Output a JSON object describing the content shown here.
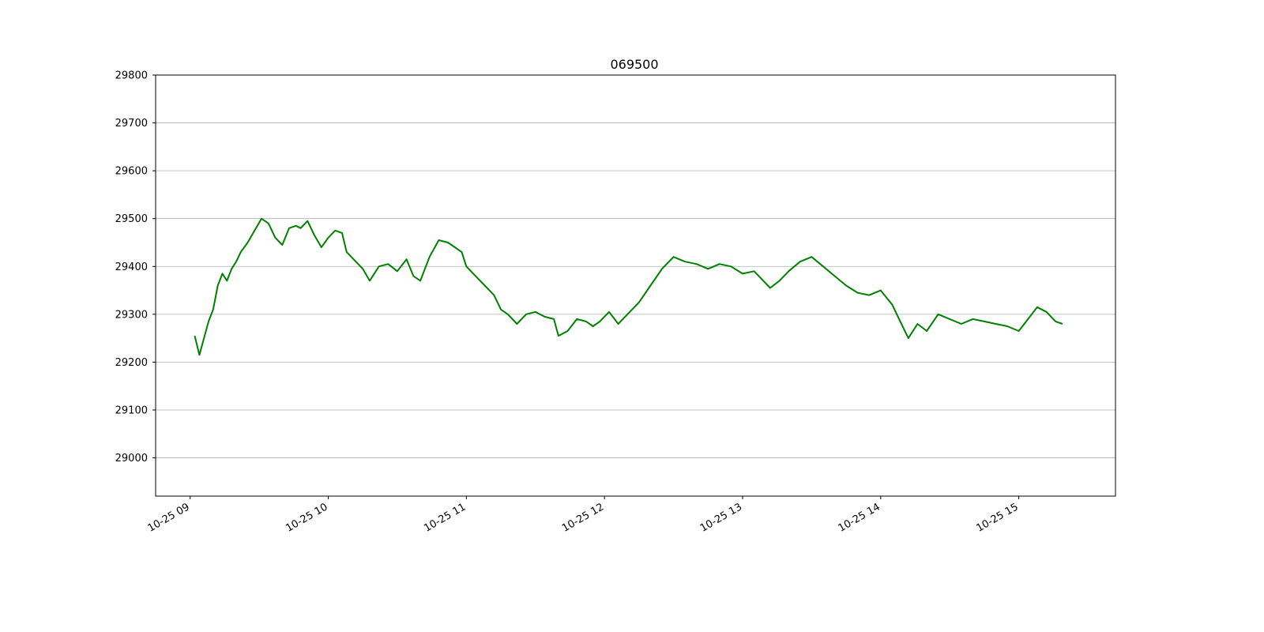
{
  "chart_data": {
    "type": "line",
    "title": "069500",
    "xlabel": "",
    "ylabel": "",
    "ylim": [
      28920,
      29800
    ],
    "xlim": [
      "10-25 08:45",
      "10-25 15:42"
    ],
    "y_ticks": [
      29000,
      29100,
      29200,
      29300,
      29400,
      29500,
      29600,
      29700,
      29800
    ],
    "x_ticks": [
      "10-25 09",
      "10-25 10",
      "10-25 11",
      "10-25 12",
      "10-25 13",
      "10-25 14",
      "10-25 15"
    ],
    "grid": "horizontal",
    "line_color": "#008000",
    "series": [
      {
        "x": [
          "10-25 09:02",
          "10-25 09:04",
          "10-25 09:06",
          "10-25 09:08",
          "10-25 09:10",
          "10-25 09:12",
          "10-25 09:14",
          "10-25 09:16",
          "10-25 09:18",
          "10-25 09:20",
          "10-25 09:22",
          "10-25 09:25",
          "10-25 09:28",
          "10-25 09:31",
          "10-25 09:34",
          "10-25 09:37",
          "10-25 09:40",
          "10-25 09:43",
          "10-25 09:46",
          "10-25 09:48",
          "10-25 09:51",
          "10-25 09:54",
          "10-25 09:57",
          "10-25 10:00",
          "10-25 10:03",
          "10-25 10:06",
          "10-25 10:08",
          "10-25 10:12",
          "10-25 10:15",
          "10-25 10:18",
          "10-25 10:22",
          "10-25 10:26",
          "10-25 10:30",
          "10-25 10:34",
          "10-25 10:37",
          "10-25 10:40",
          "10-25 10:44",
          "10-25 10:48",
          "10-25 10:52",
          "10-25 10:55",
          "10-25 10:58",
          "10-25 11:00",
          "10-25 11:04",
          "10-25 11:08",
          "10-25 11:12",
          "10-25 11:15",
          "10-25 11:18",
          "10-25 11:22",
          "10-25 11:26",
          "10-25 11:30",
          "10-25 11:34",
          "10-25 11:38",
          "10-25 11:40",
          "10-25 11:44",
          "10-25 11:48",
          "10-25 11:52",
          "10-25 11:55",
          "10-25 11:58",
          "10-25 12:02",
          "10-25 12:06",
          "10-25 12:10",
          "10-25 12:15",
          "10-25 12:20",
          "10-25 12:25",
          "10-25 12:30",
          "10-25 12:35",
          "10-25 12:40",
          "10-25 12:45",
          "10-25 12:50",
          "10-25 12:55",
          "10-25 13:00",
          "10-25 13:05",
          "10-25 13:08",
          "10-25 13:12",
          "10-25 13:16",
          "10-25 13:20",
          "10-25 13:25",
          "10-25 13:30",
          "10-25 13:35",
          "10-25 13:40",
          "10-25 13:45",
          "10-25 13:50",
          "10-25 13:55",
          "10-25 14:00",
          "10-25 14:05",
          "10-25 14:08",
          "10-25 14:12",
          "10-25 14:16",
          "10-25 14:20",
          "10-25 14:25",
          "10-25 14:30",
          "10-25 14:35",
          "10-25 14:40",
          "10-25 14:45",
          "10-25 14:50",
          "10-25 14:55",
          "10-25 15:00",
          "10-25 15:04",
          "10-25 15:08",
          "10-25 15:12",
          "10-25 15:16",
          "10-25 15:19"
        ],
        "values": [
          29255,
          29215,
          29250,
          29285,
          29310,
          29360,
          29385,
          29370,
          29395,
          29410,
          29430,
          29450,
          29475,
          29500,
          29490,
          29460,
          29445,
          29480,
          29485,
          29480,
          29495,
          29465,
          29440,
          29460,
          29475,
          29470,
          29430,
          29410,
          29395,
          29370,
          29400,
          29405,
          29390,
          29415,
          29380,
          29370,
          29420,
          29455,
          29450,
          29440,
          29430,
          29400,
          29380,
          29360,
          29340,
          29310,
          29300,
          29280,
          29300,
          29305,
          29295,
          29290,
          29255,
          29265,
          29290,
          29285,
          29275,
          29285,
          29305,
          29280,
          29300,
          29325,
          29360,
          29395,
          29420,
          29410,
          29405,
          29395,
          29405,
          29400,
          29385,
          29390,
          29375,
          29355,
          29370,
          29390,
          29410,
          29420,
          29400,
          29380,
          29360,
          29345,
          29340,
          29350,
          29320,
          29290,
          29250,
          29280,
          29265,
          29300,
          29290,
          29280,
          29290,
          29285,
          29280,
          29275,
          29265,
          29290,
          29315,
          29305,
          29285,
          29280
        ]
      }
    ]
  }
}
